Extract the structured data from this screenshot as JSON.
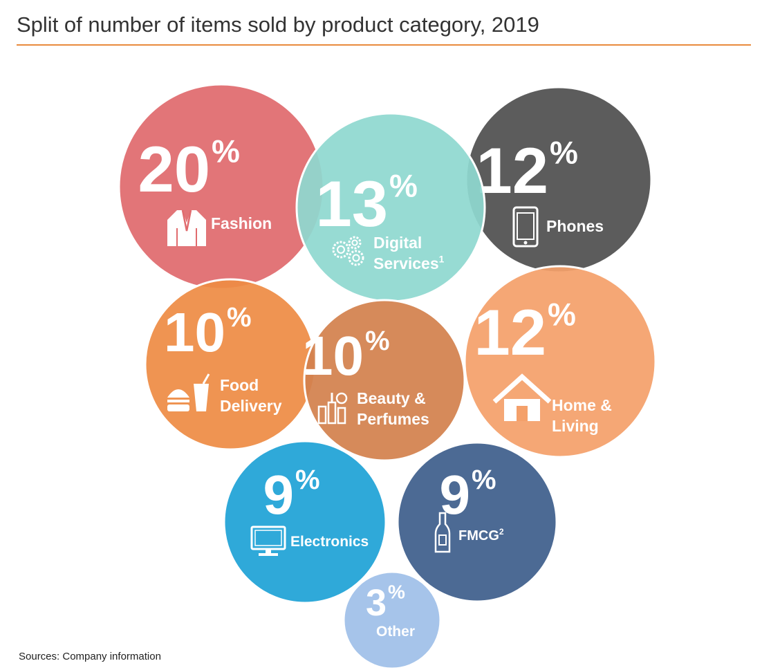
{
  "title": "Split of number of items sold by product category, 2019",
  "source": "Sources: Company information",
  "colors": {
    "accent_rule": "#E88A3C",
    "fashion": "#E06B6E",
    "digital_services": "#8FD8D0",
    "phones": "#505050",
    "food_delivery": "#EE8C45",
    "beauty_perfumes": "#D3814E",
    "home_living": "#F4A06A",
    "electronics": "#1FA3D6",
    "fmcg": "#3E5F8C",
    "other": "#9FC0E8"
  },
  "chart_data": {
    "type": "bubble",
    "title": "Split of number of items sold by product category, 2019",
    "unit": "%",
    "categories": [
      {
        "key": "fashion",
        "value": 20,
        "label_lines": [
          "Fashion"
        ],
        "icon": "jacket-icon"
      },
      {
        "key": "digital_services",
        "value": 13,
        "label_lines": [
          "Digital",
          "Services"
        ],
        "superscript": "1",
        "icon": "gears-icon"
      },
      {
        "key": "phones",
        "value": 12,
        "label_lines": [
          "Phones"
        ],
        "icon": "smartphone-icon"
      },
      {
        "key": "food_delivery",
        "value": 10,
        "label_lines": [
          "Food",
          "Delivery"
        ],
        "icon": "burger-drink-icon"
      },
      {
        "key": "beauty_perfumes",
        "value": 10,
        "label_lines": [
          "Beauty &",
          "Perfumes"
        ],
        "icon": "cosmetics-icon"
      },
      {
        "key": "home_living",
        "value": 12,
        "label_lines": [
          "Home &",
          "Living"
        ],
        "icon": "house-icon"
      },
      {
        "key": "electronics",
        "value": 9,
        "label_lines": [
          "Electronics"
        ],
        "icon": "monitor-icon"
      },
      {
        "key": "fmcg",
        "value": 9,
        "label_lines": [
          "FMCG"
        ],
        "superscript": "2",
        "icon": "bottle-icon"
      },
      {
        "key": "other",
        "value": 3,
        "label_lines": [
          "Other"
        ],
        "icon": ""
      }
    ]
  }
}
